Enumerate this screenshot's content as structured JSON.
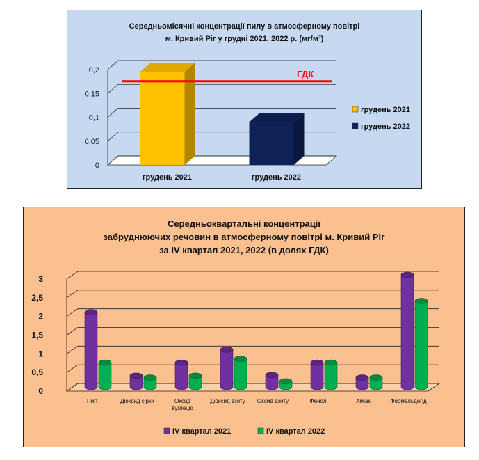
{
  "chart_data": [
    {
      "type": "bar",
      "title": "Середньомісячні  концентрації  пилу в атмосферному  повітрі\nм. Кривий Ріг у грудні 2021, 2022 р. (мг/м³)",
      "categories": [
        "грудень 2021",
        "грудень 2022"
      ],
      "series": [
        {
          "name": "грудень 2021",
          "values": [
            0.195,
            null
          ],
          "color": "#ffc000"
        },
        {
          "name": "грудень 2022",
          "values": [
            null,
            0.09
          ],
          "color": "#0e2257"
        }
      ],
      "ylim": [
        0,
        0.2
      ],
      "yticks": [
        "0",
        "0,05",
        "0,1",
        "0,15",
        "0,2"
      ],
      "reference_line": {
        "label": "ГДК",
        "value": 0.166,
        "color": "#ff0000"
      },
      "legend_position": "right",
      "grid": true
    },
    {
      "type": "bar",
      "title": "Середньоквартальні концентрації\nзабруднюючих речовин в атмосферному повітрі м. Кривий Ріг\nза IV  квартал 2021, 2022 (в долях ГДК)",
      "categories": [
        "Пил",
        "Діоксид сірки",
        "Оксид вуглецю",
        "Діоксид азоту",
        "Оксид азоту",
        "Фенол",
        "Аміак",
        "Формальдегід"
      ],
      "series": [
        {
          "name": "IV квартал 2021",
          "values": [
            2.0,
            0.3,
            0.65,
            1.0,
            0.32,
            0.65,
            0.25,
            3.0
          ],
          "color": "#7030a0"
        },
        {
          "name": "IV квартал 2022",
          "values": [
            0.65,
            0.25,
            0.3,
            0.75,
            0.15,
            0.65,
            0.25,
            2.3
          ],
          "color": "#00b050"
        }
      ],
      "ylim": [
        0,
        3
      ],
      "yticks": [
        "0",
        "0,5",
        "1",
        "1,5",
        "2",
        "2,5",
        "3"
      ],
      "legend_position": "bottom",
      "grid": true
    }
  ]
}
